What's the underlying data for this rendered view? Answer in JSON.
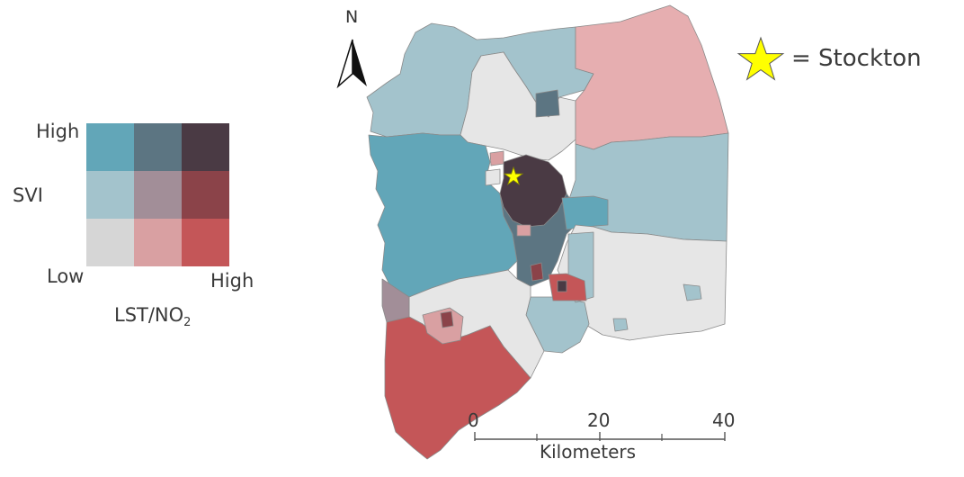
{
  "legend": {
    "y_high": "High",
    "y_axis": "SVI",
    "x_low": "Low",
    "x_high": "High",
    "x_axis_main": "LST/NO",
    "x_axis_sub": "2",
    "colors": [
      [
        "#62a6b8",
        "#5c7582",
        "#4a3a44"
      ],
      [
        "#a3c3cc",
        "#a28e98",
        "#8b4349"
      ],
      [
        "#d6d6d6",
        "#d9a0a2",
        "#c45658"
      ]
    ]
  },
  "north_arrow": {
    "label": "N"
  },
  "marker_key": {
    "label": "= Stockton",
    "star_color": "#ffff00"
  },
  "scale_bar": {
    "ticks": [
      "0",
      "20",
      "40"
    ],
    "unit": "Kilometers"
  }
}
